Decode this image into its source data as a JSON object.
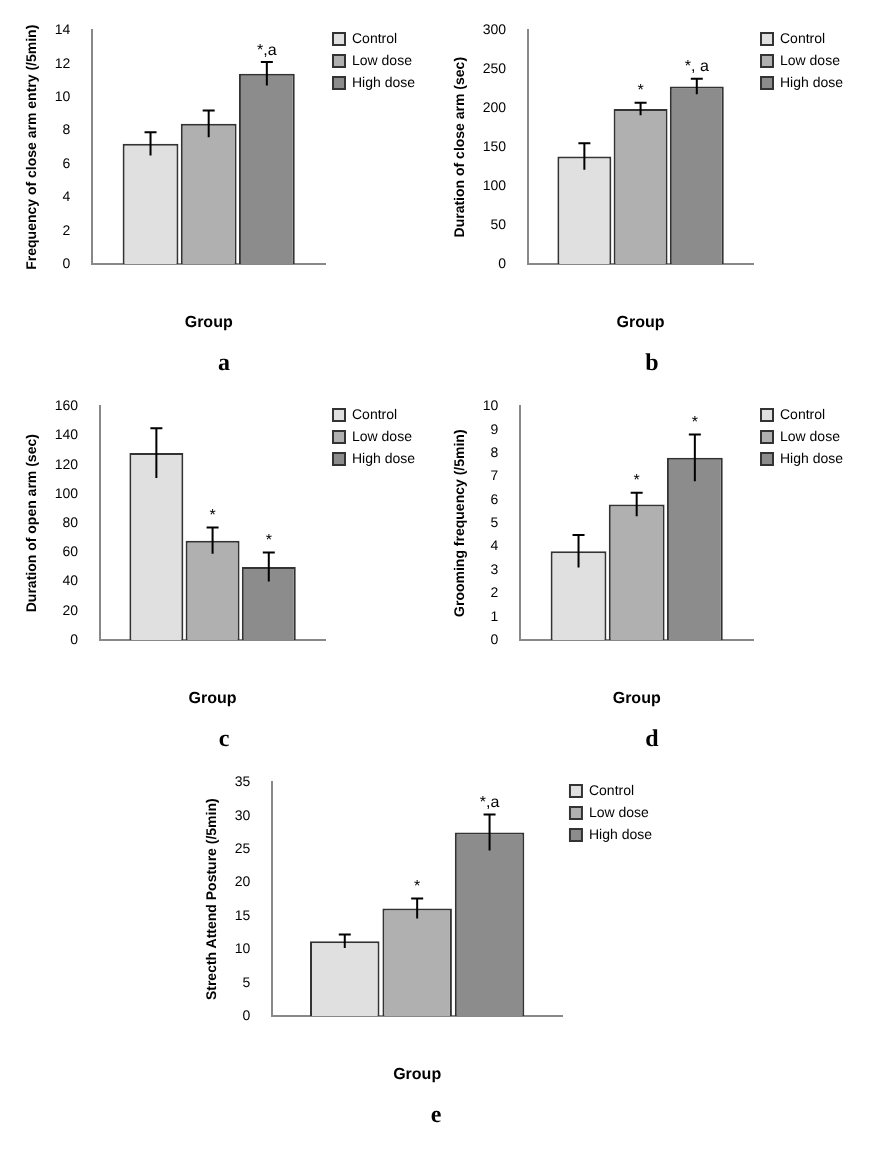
{
  "chart_data": [
    {
      "type": "bar",
      "categories": [
        null
      ],
      "xlabel": "Group",
      "ylabel": "Frequency of close arm entry (/5min)",
      "ylim": [
        0,
        14
      ],
      "yticks": [
        0,
        2,
        4,
        6,
        8,
        10,
        12,
        14
      ],
      "legend": "top right",
      "annotations": [
        "a"
      ],
      "series": [
        {
          "name": "Control",
          "color": "#e0e0e0",
          "values": [
            7.2
          ],
          "errors": [
            0.7
          ]
        },
        {
          "name": "Low dose",
          "color": "#b0b0b0",
          "values": [
            8.4
          ],
          "errors": [
            0.8
          ]
        },
        {
          "name": "High dose",
          "color": "#8c8c8c",
          "values": [
            11.4
          ],
          "errors": [
            0.7
          ],
          "value_labels": [
            "*,a"
          ]
        }
      ]
    },
    {
      "type": "bar",
      "categories": [
        null
      ],
      "xlabel": "Group",
      "ylabel": "Duration of close arm (sec)",
      "ylim": [
        0,
        300
      ],
      "yticks": [
        0,
        50,
        100,
        150,
        200,
        250,
        300
      ],
      "legend": "top right",
      "annotations": [
        "b"
      ],
      "series": [
        {
          "name": "Control",
          "color": "#e0e0e0",
          "values": [
            138
          ],
          "errors": [
            17
          ]
        },
        {
          "name": "Low dose",
          "color": "#b0b0b0",
          "values": [
            199
          ],
          "errors": [
            8
          ],
          "value_labels": [
            "*"
          ]
        },
        {
          "name": "High dose",
          "color": "#8c8c8c",
          "values": [
            228
          ],
          "errors": [
            10
          ],
          "value_labels": [
            "*, a"
          ]
        }
      ]
    },
    {
      "type": "bar",
      "categories": [
        null
      ],
      "xlabel": "Group",
      "ylabel": "Duration of open arm (sec)",
      "ylim": [
        0,
        160
      ],
      "yticks": [
        0,
        20,
        40,
        60,
        80,
        100,
        120,
        140,
        160
      ],
      "legend": "top right",
      "annotations": [
        "c"
      ],
      "series": [
        {
          "name": "Control",
          "color": "#e0e0e0",
          "values": [
            128
          ],
          "errors": [
            17
          ]
        },
        {
          "name": "Low dose",
          "color": "#b0b0b0",
          "values": [
            68
          ],
          "errors": [
            9
          ],
          "value_labels": [
            "*"
          ]
        },
        {
          "name": "High dose",
          "color": "#8c8c8c",
          "values": [
            50
          ],
          "errors": [
            10
          ],
          "value_labels": [
            "*"
          ]
        }
      ]
    },
    {
      "type": "bar",
      "categories": [
        null
      ],
      "xlabel": "Group",
      "ylabel": "Grooming frequency (/5min)",
      "ylim": [
        0,
        10
      ],
      "yticks": [
        0,
        1,
        2,
        3,
        4,
        5,
        6,
        7,
        8,
        9,
        10
      ],
      "legend": "top right",
      "annotations": [
        "d"
      ],
      "series": [
        {
          "name": "Control",
          "color": "#e0e0e0",
          "values": [
            3.8
          ],
          "errors": [
            0.7
          ]
        },
        {
          "name": "Low dose",
          "color": "#b0b0b0",
          "values": [
            5.8
          ],
          "errors": [
            0.5
          ],
          "value_labels": [
            "*"
          ]
        },
        {
          "name": "High dose",
          "color": "#8c8c8c",
          "values": [
            7.8
          ],
          "errors": [
            1.0
          ],
          "value_labels": [
            "*"
          ]
        }
      ]
    },
    {
      "type": "bar",
      "categories": [
        null
      ],
      "xlabel": "Group",
      "ylabel": "Strecth Attend Posture (/5min)",
      "ylim": [
        0,
        35
      ],
      "yticks": [
        0,
        5,
        10,
        15,
        20,
        25,
        30,
        35
      ],
      "legend": "top right",
      "annotations": [
        "e"
      ],
      "series": [
        {
          "name": "Control",
          "color": "#e0e0e0",
          "values": [
            11.2
          ],
          "errors": [
            1.0
          ]
        },
        {
          "name": "Low dose",
          "color": "#b0b0b0",
          "values": [
            16.1
          ],
          "errors": [
            1.5
          ],
          "value_labels": [
            "*"
          ]
        },
        {
          "name": "High dose",
          "color": "#8c8c8c",
          "values": [
            27.5
          ],
          "errors": [
            2.7
          ],
          "value_labels": [
            "*,a"
          ]
        }
      ]
    }
  ]
}
